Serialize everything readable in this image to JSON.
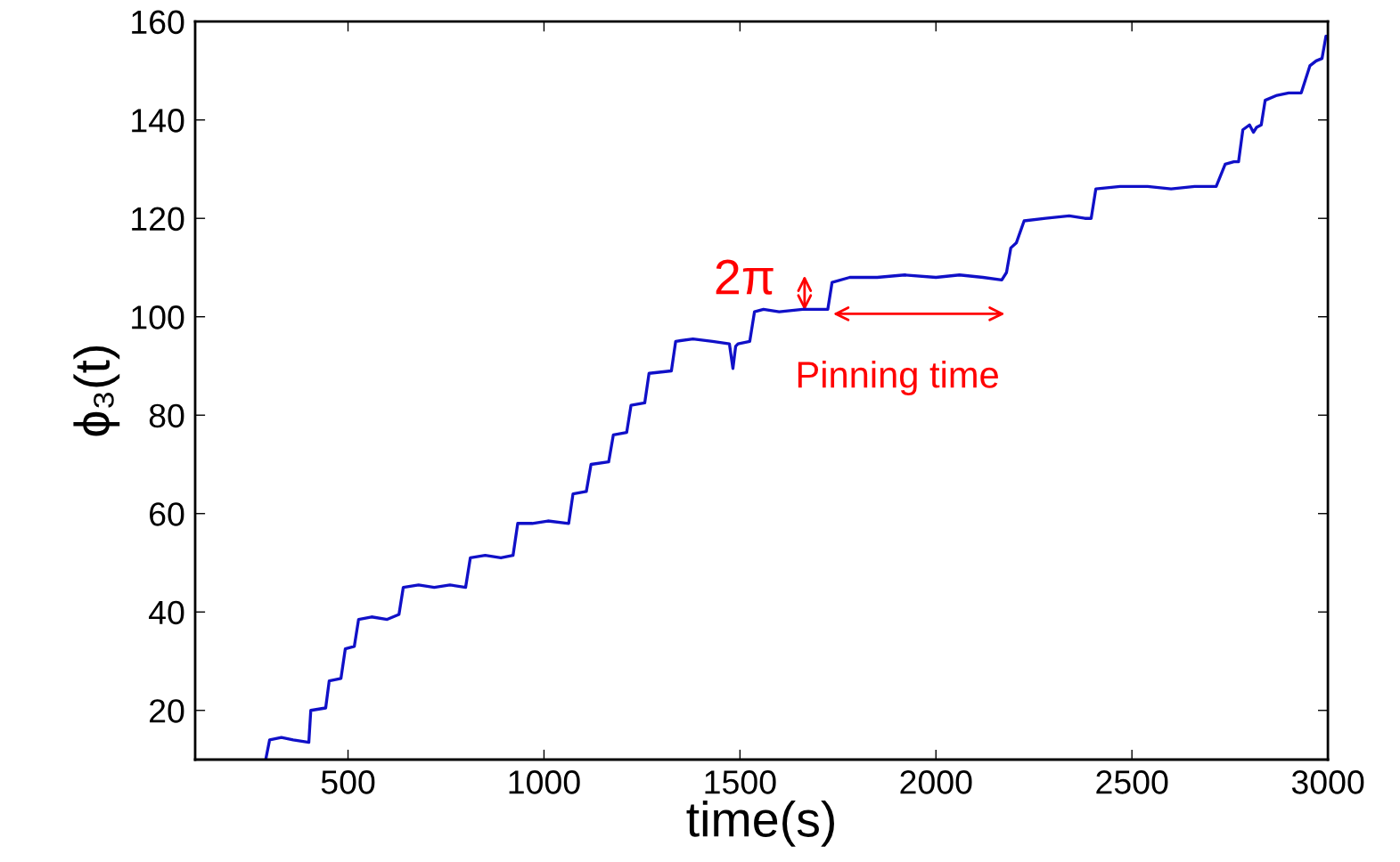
{
  "chart_data": {
    "type": "line",
    "xlabel": "time(s)",
    "ylabel": "ϕ₃(t)",
    "xlim": [
      110,
      3000
    ],
    "ylim": [
      10,
      160
    ],
    "xticks": [
      500,
      1000,
      1500,
      2000,
      2500,
      3000
    ],
    "yticks": [
      20,
      40,
      60,
      80,
      100,
      120,
      140,
      160
    ],
    "grid": false,
    "legend": false,
    "series": [
      {
        "color": "#1010c8",
        "x": [
          290,
          300,
          330,
          360,
          400,
          405,
          443,
          452,
          482,
          493,
          516,
          527,
          560,
          600,
          630,
          641,
          680,
          720,
          760,
          800,
          812,
          850,
          890,
          921,
          933,
          970,
          1010,
          1063,
          1074,
          1108,
          1120,
          1165,
          1177,
          1211,
          1222,
          1257,
          1268,
          1325,
          1336,
          1380,
          1430,
          1473,
          1482,
          1489,
          1495,
          1525,
          1537,
          1560,
          1600,
          1660,
          1724,
          1735,
          1780,
          1850,
          1920,
          2000,
          2060,
          2120,
          2168,
          2180,
          2191,
          2205,
          2225,
          2280,
          2340,
          2380,
          2396,
          2408,
          2470,
          2540,
          2600,
          2660,
          2715,
          2738,
          2760,
          2772,
          2783,
          2800,
          2810,
          2818,
          2830,
          2840,
          2870,
          2900,
          2932,
          2954,
          2970,
          2985,
          2995,
          3000
        ],
        "values": [
          10,
          14,
          14.5,
          14,
          13.5,
          20,
          20.5,
          26,
          26.5,
          32.5,
          33,
          38.5,
          39,
          38.5,
          39.5,
          45,
          45.5,
          45,
          45.5,
          45,
          51,
          51.5,
          51,
          51.5,
          58,
          58,
          58.5,
          58,
          64,
          64.5,
          70,
          70.5,
          76,
          76.5,
          82,
          82.5,
          88.5,
          89,
          95,
          95.5,
          95,
          94.5,
          89.5,
          94,
          94.5,
          95,
          101,
          101.5,
          101,
          101.5,
          101.5,
          107,
          108,
          108,
          108.5,
          108,
          108.5,
          108,
          107.5,
          109,
          114,
          115,
          119.5,
          120,
          120.5,
          120,
          120,
          126,
          126.5,
          126.5,
          126,
          126.5,
          126.5,
          131,
          131.5,
          131.5,
          138,
          139,
          137.5,
          138.5,
          139,
          144,
          145,
          145.5,
          145.5,
          151,
          152,
          152.5,
          157,
          157
        ]
      }
    ],
    "annotations": [
      "2π",
      "Pinning time"
    ]
  }
}
